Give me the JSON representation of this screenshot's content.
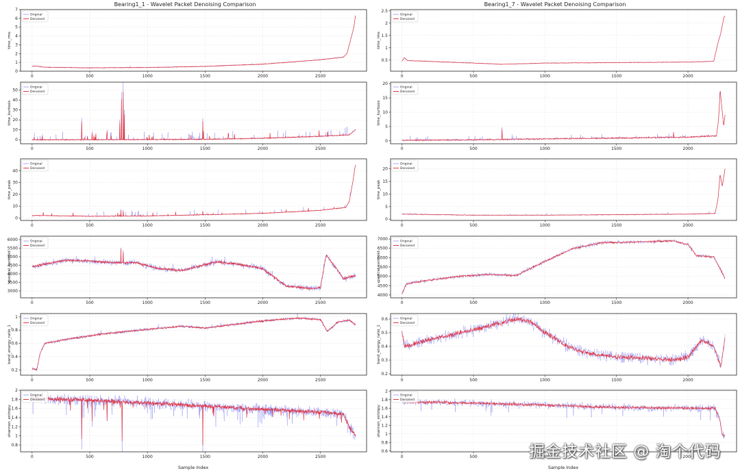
{
  "figure": {
    "watermark": "掘金技术社区 @ 淘个代码",
    "columns": [
      {
        "title": "Bearing1_1 - Wavelet Packet Denoising Comparison",
        "xlabel": "Sample Index"
      },
      {
        "title": "Bearing1_7 - Wavelet Packet Denoising Comparison",
        "xlabel": "Sample Index"
      }
    ],
    "colors": {
      "original": "#5c5cf0",
      "denoised": "#e0202a",
      "grid": "#dddddd",
      "axis": "#222222"
    }
  },
  "chart_data": [
    {
      "type": "line",
      "panel": "bearing1_1-time_rms",
      "ylabel": "time_rms",
      "xlim": [
        -100,
        2900
      ],
      "ylim": [
        0,
        7
      ],
      "xticks": [
        0,
        500,
        1000,
        1500,
        2000,
        2500
      ],
      "yticks": [
        0,
        1,
        2,
        3,
        4,
        5,
        6,
        7
      ],
      "legend": {
        "position": "top-left",
        "entries": [
          "Original",
          "Denoised"
        ]
      },
      "series": [
        {
          "name": "Original",
          "noise": 0.05,
          "spike_prob": 0.004,
          "spike_max": 0.3
        },
        {
          "name": "Denoised",
          "noise": 0.03
        }
      ],
      "trend_points": [
        [
          0,
          0.55
        ],
        [
          30,
          0.6
        ],
        [
          100,
          0.45
        ],
        [
          500,
          0.38
        ],
        [
          1000,
          0.42
        ],
        [
          1500,
          0.55
        ],
        [
          2000,
          0.8
        ],
        [
          2500,
          1.3
        ],
        [
          2700,
          1.6
        ],
        [
          2730,
          2.0
        ],
        [
          2760,
          3.5
        ],
        [
          2790,
          5.0
        ],
        [
          2803,
          6.3
        ]
      ]
    },
    {
      "type": "line",
      "panel": "bearing1_1-time_kurtosis",
      "ylabel": "time_kurtosis",
      "xlim": [
        -100,
        2900
      ],
      "ylim": [
        -4,
        58
      ],
      "xticks": [
        0,
        500,
        1000,
        1500,
        2000,
        2500
      ],
      "yticks": [
        0,
        10,
        20,
        30,
        40,
        50
      ],
      "legend": {
        "position": "top-left",
        "entries": [
          "Original",
          "Denoised"
        ]
      },
      "series": [
        {
          "name": "Original",
          "noise": 0.5,
          "spike_prob": 0.05,
          "spike_max": 8
        },
        {
          "name": "Denoised",
          "noise": 0.4,
          "spike_prob": 0.03,
          "spike_max": 6
        }
      ],
      "trend_points": [
        [
          0,
          0
        ],
        [
          1000,
          0.2
        ],
        [
          1500,
          0.5
        ],
        [
          2000,
          1.5
        ],
        [
          2500,
          3.5
        ],
        [
          2750,
          5
        ],
        [
          2803,
          10
        ]
      ],
      "spikes": [
        [
          430,
          22
        ],
        [
          480,
          4
        ],
        [
          520,
          8
        ],
        [
          650,
          10
        ],
        [
          760,
          20
        ],
        [
          775,
          48
        ],
        [
          790,
          57
        ],
        [
          800,
          30
        ],
        [
          1480,
          21
        ],
        [
          1485,
          9
        ]
      ]
    },
    {
      "type": "line",
      "panel": "bearing1_1-time_peak",
      "ylabel": "time_peak",
      "xlim": [
        -100,
        2900
      ],
      "ylim": [
        -2,
        50
      ],
      "xticks": [
        0,
        500,
        1000,
        1500,
        2000,
        2500
      ],
      "yticks": [
        0,
        10,
        20,
        30,
        40
      ],
      "legend": {
        "position": "top-left",
        "entries": [
          "Original",
          "Denoised"
        ]
      },
      "series": [
        {
          "name": "Original",
          "noise": 0.3,
          "spike_prob": 0.03,
          "spike_max": 5
        },
        {
          "name": "Denoised",
          "noise": 0.25,
          "spike_prob": 0.02,
          "spike_max": 3
        }
      ],
      "trend_points": [
        [
          0,
          2
        ],
        [
          40,
          2.2
        ],
        [
          500,
          1.5
        ],
        [
          1000,
          1.8
        ],
        [
          1500,
          2.8
        ],
        [
          2000,
          4
        ],
        [
          2500,
          6.5
        ],
        [
          2720,
          9
        ],
        [
          2750,
          14
        ],
        [
          2780,
          30
        ],
        [
          2803,
          45
        ]
      ],
      "spikes": [
        [
          770,
          6
        ],
        [
          790,
          5
        ],
        [
          1480,
          3
        ]
      ]
    },
    {
      "type": "line",
      "panel": "bearing1_1-spectral_centroid",
      "ylabel": "spectral_centroid",
      "xlim": [
        -100,
        2900
      ],
      "ylim": [
        2600,
        6200
      ],
      "xticks": [
        0,
        500,
        1000,
        1500,
        2000,
        2500
      ],
      "yticks": [
        3000,
        3500,
        4000,
        4500,
        5000,
        5500,
        6000
      ],
      "legend": {
        "position": "top-left",
        "entries": [
          "Original",
          "Denoised"
        ]
      },
      "series": [
        {
          "name": "Original",
          "noise": 140,
          "spike_prob": 0.01,
          "spike_max": 400
        },
        {
          "name": "Denoised",
          "noise": 60
        }
      ],
      "trend_points": [
        [
          0,
          4400
        ],
        [
          100,
          4550
        ],
        [
          300,
          4800
        ],
        [
          500,
          4750
        ],
        [
          700,
          4650
        ],
        [
          900,
          4650
        ],
        [
          1100,
          4300
        ],
        [
          1300,
          4200
        ],
        [
          1450,
          4450
        ],
        [
          1600,
          4700
        ],
        [
          1800,
          4550
        ],
        [
          2000,
          4300
        ],
        [
          2200,
          3300
        ],
        [
          2400,
          3150
        ],
        [
          2500,
          3200
        ],
        [
          2550,
          5100
        ],
        [
          2650,
          4200
        ],
        [
          2700,
          3700
        ],
        [
          2803,
          3900
        ]
      ],
      "spikes": [
        [
          770,
          1000
        ],
        [
          790,
          800
        ]
      ]
    },
    {
      "type": "line",
      "panel": "bearing1_1-band_energy_ratio_1",
      "ylabel": "band_energy_ratio_1",
      "xlim": [
        -100,
        2900
      ],
      "ylim": [
        0.12,
        1.05
      ],
      "xticks": [
        0,
        500,
        1000,
        1500,
        2000,
        2500
      ],
      "yticks": [
        0.2,
        0.4,
        0.6,
        0.8,
        1.0
      ],
      "legend": {
        "position": "top-left",
        "entries": [
          "Original",
          "Denoised"
        ]
      },
      "series": [
        {
          "name": "Original",
          "noise": 0.02,
          "spike_prob": 0.01,
          "spike_max": 0.08
        },
        {
          "name": "Denoised",
          "noise": 0.01
        }
      ],
      "trend_points": [
        [
          0,
          0.22
        ],
        [
          40,
          0.2
        ],
        [
          70,
          0.45
        ],
        [
          110,
          0.6
        ],
        [
          300,
          0.66
        ],
        [
          600,
          0.74
        ],
        [
          1000,
          0.81
        ],
        [
          1300,
          0.86
        ],
        [
          1500,
          0.83
        ],
        [
          2000,
          0.94
        ],
        [
          2300,
          0.98
        ],
        [
          2500,
          0.96
        ],
        [
          2560,
          0.78
        ],
        [
          2650,
          0.92
        ],
        [
          2750,
          0.95
        ],
        [
          2803,
          0.88
        ]
      ]
    },
    {
      "type": "line",
      "panel": "bearing1_1-shannon_entropy",
      "ylabel": "shannon_entropy",
      "xlim": [
        -100,
        2900
      ],
      "ylim": [
        0.65,
        2.0
      ],
      "xticks": [
        0,
        500,
        1000,
        1500,
        2000,
        2500
      ],
      "yticks": [
        0.8,
        1.0,
        1.2,
        1.4,
        1.6,
        1.8,
        2.0
      ],
      "legend": {
        "position": "top-left",
        "entries": [
          "Original",
          "Denoised"
        ]
      },
      "series": [
        {
          "name": "Original",
          "noise": 0.1,
          "spike_prob": 0.05,
          "spike_max": -0.4
        },
        {
          "name": "Denoised",
          "noise": 0.04,
          "spike_prob": 0.02,
          "spike_max": -0.2
        }
      ],
      "trend_points": [
        [
          0,
          1.82
        ],
        [
          500,
          1.78
        ],
        [
          1000,
          1.72
        ],
        [
          1500,
          1.65
        ],
        [
          2000,
          1.58
        ],
        [
          2500,
          1.52
        ],
        [
          2700,
          1.48
        ],
        [
          2750,
          1.2
        ],
        [
          2803,
          1.0
        ]
      ],
      "spikes": [
        [
          430,
          -1.0
        ],
        [
          520,
          -0.5
        ],
        [
          650,
          -0.5
        ],
        [
          780,
          -1.0
        ],
        [
          1480,
          -1.0
        ]
      ]
    },
    {
      "type": "line",
      "panel": "bearing1_7-time_rms",
      "ylabel": "time_rms",
      "xlim": [
        -80,
        2340
      ],
      "ylim": [
        0.05,
        2.55
      ],
      "xticks": [
        0,
        500,
        1000,
        1500,
        2000
      ],
      "yticks": [
        0.5,
        1.0,
        1.5,
        2.0,
        2.5
      ],
      "legend": {
        "position": "top-left",
        "entries": [
          "Original",
          "Denoised"
        ]
      },
      "series": [
        {
          "name": "Original",
          "noise": 0.015
        },
        {
          "name": "Denoised",
          "noise": 0.01
        }
      ],
      "trend_points": [
        [
          0,
          0.45
        ],
        [
          15,
          0.6
        ],
        [
          40,
          0.48
        ],
        [
          500,
          0.38
        ],
        [
          700,
          0.33
        ],
        [
          1000,
          0.38
        ],
        [
          1500,
          0.4
        ],
        [
          2000,
          0.42
        ],
        [
          2180,
          0.45
        ],
        [
          2210,
          1.2
        ],
        [
          2230,
          1.6
        ],
        [
          2250,
          2.2
        ],
        [
          2259,
          2.3
        ]
      ]
    },
    {
      "type": "line",
      "panel": "bearing1_7-time_kurtosis",
      "ylabel": "time_kurtosis",
      "xlim": [
        -80,
        2340
      ],
      "ylim": [
        -1,
        20.5
      ],
      "xticks": [
        0,
        500,
        1000,
        1500,
        2000
      ],
      "yticks": [
        0,
        5,
        10,
        15,
        20
      ],
      "legend": {
        "position": "top-left",
        "entries": [
          "Original",
          "Denoised"
        ]
      },
      "series": [
        {
          "name": "Original",
          "noise": 0.3,
          "spike_prob": 0.03,
          "spike_max": 1.5
        },
        {
          "name": "Denoised",
          "noise": 0.2
        }
      ],
      "trend_points": [
        [
          0,
          0.2
        ],
        [
          500,
          0.4
        ],
        [
          1000,
          0.7
        ],
        [
          1500,
          1.0
        ],
        [
          2000,
          1.3
        ],
        [
          2200,
          1.8
        ],
        [
          2215,
          8
        ],
        [
          2225,
          18
        ],
        [
          2240,
          10
        ],
        [
          2250,
          5
        ],
        [
          2259,
          9
        ]
      ],
      "spikes": [
        [
          700,
          4
        ],
        [
          1900,
          2
        ]
      ]
    },
    {
      "type": "line",
      "panel": "bearing1_7-time_peak",
      "ylabel": "time_peak",
      "xlim": [
        -80,
        2340
      ],
      "ylim": [
        -0.5,
        24
      ],
      "xticks": [
        0,
        500,
        1000,
        1500,
        2000
      ],
      "yticks": [
        0,
        5,
        10,
        15,
        20
      ],
      "legend": {
        "position": "top-left",
        "entries": [
          "Original",
          "Denoised"
        ]
      },
      "series": [
        {
          "name": "Original",
          "noise": 0.2,
          "spike_prob": 0.02,
          "spike_max": 0.8
        },
        {
          "name": "Denoised",
          "noise": 0.1
        }
      ],
      "trend_points": [
        [
          0,
          2
        ],
        [
          500,
          1.6
        ],
        [
          1000,
          1.6
        ],
        [
          1500,
          1.8
        ],
        [
          2000,
          2
        ],
        [
          2190,
          2.3
        ],
        [
          2210,
          8
        ],
        [
          2225,
          18
        ],
        [
          2240,
          13
        ],
        [
          2259,
          20
        ]
      ]
    },
    {
      "type": "line",
      "panel": "bearing1_7-spectral_centroid",
      "ylabel": "spectral_centroid",
      "xlim": [
        -80,
        2340
      ],
      "ylim": [
        3850,
        7150
      ],
      "xticks": [
        0,
        500,
        1000,
        1500,
        2000
      ],
      "yticks": [
        4000,
        4500,
        5000,
        5500,
        6000,
        6500,
        7000
      ],
      "legend": {
        "position": "top-left",
        "entries": [
          "Original",
          "Denoised"
        ]
      },
      "series": [
        {
          "name": "Original",
          "noise": 90
        },
        {
          "name": "Denoised",
          "noise": 40
        }
      ],
      "trend_points": [
        [
          0,
          4050
        ],
        [
          30,
          4600
        ],
        [
          150,
          4750
        ],
        [
          400,
          5000
        ],
        [
          600,
          5100
        ],
        [
          800,
          5050
        ],
        [
          1000,
          5800
        ],
        [
          1200,
          6500
        ],
        [
          1400,
          6800
        ],
        [
          1700,
          6850
        ],
        [
          1900,
          6900
        ],
        [
          2000,
          6700
        ],
        [
          2060,
          6100
        ],
        [
          2180,
          6050
        ],
        [
          2259,
          4900
        ]
      ]
    },
    {
      "type": "line",
      "panel": "bearing1_7-band_energy_ratio_1",
      "ylabel": "band_energy_ratio_1",
      "xlim": [
        -80,
        2340
      ],
      "ylim": [
        0.19,
        0.64
      ],
      "xticks": [
        0,
        500,
        1000,
        1500,
        2000
      ],
      "yticks": [
        0.2,
        0.3,
        0.4,
        0.5,
        0.6
      ],
      "legend": {
        "position": "top-left",
        "entries": [
          "Original",
          "Denoised"
        ]
      },
      "series": [
        {
          "name": "Original",
          "noise": 0.035
        },
        {
          "name": "Denoised",
          "noise": 0.015
        }
      ],
      "trend_points": [
        [
          0,
          0.5
        ],
        [
          20,
          0.4
        ],
        [
          200,
          0.45
        ],
        [
          500,
          0.52
        ],
        [
          800,
          0.6
        ],
        [
          900,
          0.58
        ],
        [
          1000,
          0.5
        ],
        [
          1200,
          0.38
        ],
        [
          1400,
          0.33
        ],
        [
          1600,
          0.32
        ],
        [
          1900,
          0.3
        ],
        [
          2000,
          0.32
        ],
        [
          2100,
          0.45
        ],
        [
          2180,
          0.4
        ],
        [
          2230,
          0.25
        ],
        [
          2259,
          0.47
        ]
      ]
    },
    {
      "type": "line",
      "panel": "bearing1_7-shannon_entropy",
      "ylabel": "shannon_entropy",
      "xlim": [
        -80,
        2340
      ],
      "ylim": [
        0.58,
        2.02
      ],
      "xticks": [
        0,
        500,
        1000,
        1500,
        2000
      ],
      "yticks": [
        0.6,
        0.8,
        1.0,
        1.2,
        1.4,
        1.6,
        1.8,
        2.0
      ],
      "legend": {
        "position": "top-left",
        "entries": [
          "Original",
          "Denoised"
        ]
      },
      "series": [
        {
          "name": "Original",
          "noise": 0.07,
          "spike_prob": 0.03,
          "spike_max": -0.3
        },
        {
          "name": "Denoised",
          "noise": 0.03
        }
      ],
      "trend_points": [
        [
          0,
          1.75
        ],
        [
          500,
          1.72
        ],
        [
          1000,
          1.67
        ],
        [
          1500,
          1.62
        ],
        [
          2000,
          1.6
        ],
        [
          2190,
          1.6
        ],
        [
          2220,
          1.35
        ],
        [
          2240,
          1.0
        ],
        [
          2259,
          0.95
        ]
      ]
    }
  ]
}
